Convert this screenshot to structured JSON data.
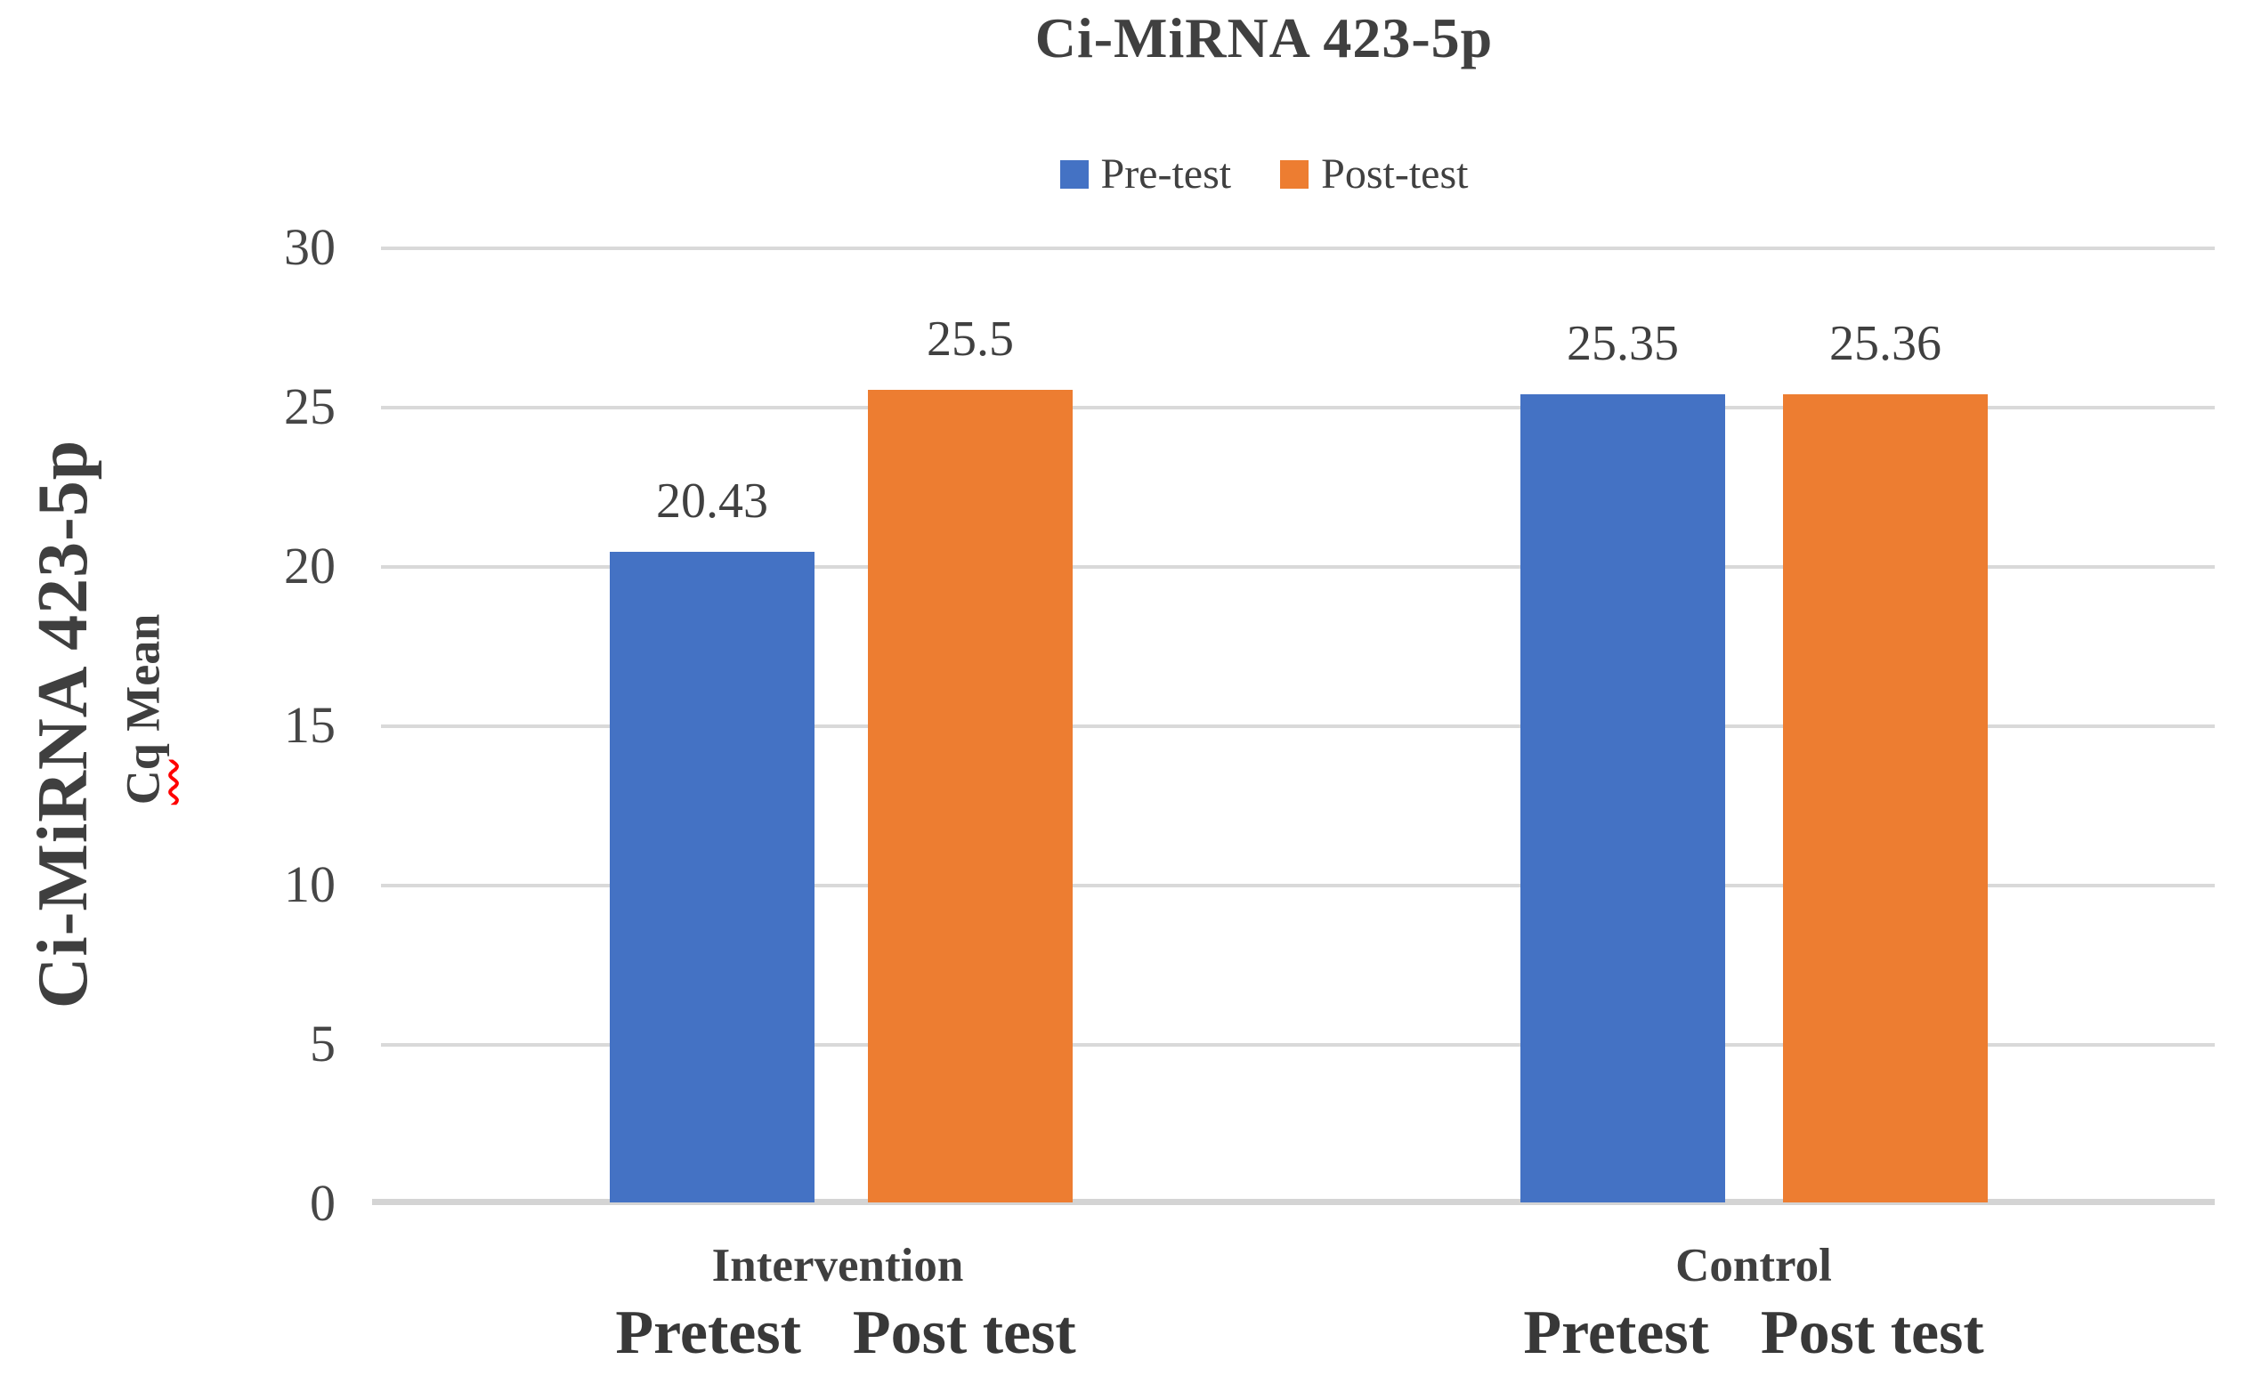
{
  "chart_data": {
    "type": "bar",
    "title": "Ci-MiRNA 423-5p",
    "legend_position": "top",
    "grid": true,
    "y_axis": {
      "outer_label": "Ci-MiRNA 423-5p",
      "inner_label_word1": "Cq",
      "inner_label_word2": "Mean",
      "min": 0,
      "max": 30,
      "tick_step": 5,
      "ticks_top_to_bottom": [
        "30",
        "25",
        "20",
        "15",
        "10",
        "5",
        "0"
      ]
    },
    "series": [
      {
        "name": "Pre-test",
        "color": "#4472C4"
      },
      {
        "name": "Post-test",
        "color": "#ED7D31"
      }
    ],
    "groups": [
      {
        "category": "Intervention",
        "sub_labels": [
          "Pretest",
          "Post test"
        ],
        "bars": [
          {
            "series": "Pre-test",
            "value": 20.43,
            "label": "20.43"
          },
          {
            "series": "Post-test",
            "value": 25.5,
            "label": "25.5"
          }
        ]
      },
      {
        "category": "Control",
        "sub_labels": [
          "Pretest",
          "Post test"
        ],
        "bars": [
          {
            "series": "Pre-test",
            "value": 25.35,
            "label": "25.35"
          },
          {
            "series": "Post-test",
            "value": 25.36,
            "label": "25.36"
          }
        ]
      }
    ]
  },
  "colors": {
    "gridline": "#D9D9D9",
    "axis_line": "#D4D4D4",
    "text": "#404040",
    "spellcheck_underline": "#FF0000"
  }
}
